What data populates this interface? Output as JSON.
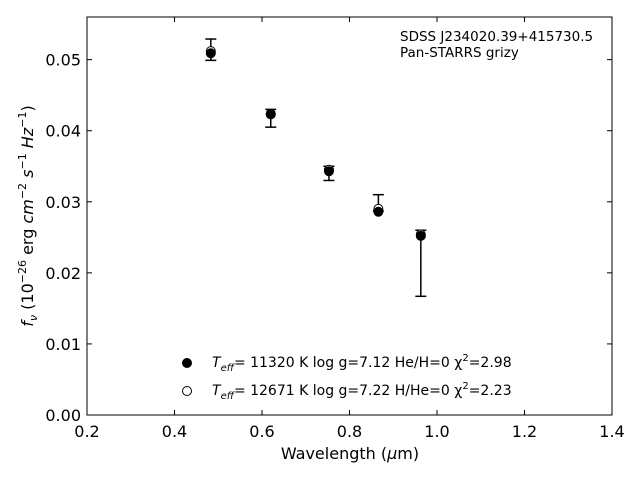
{
  "chart_data": {
    "type": "scatter",
    "title": "",
    "xlabel": "Wavelength (μm)",
    "ylabel": "f_ν (10^-26 erg cm^-2 s^-1 Hz^-1)",
    "xlim": [
      0.2,
      1.4
    ],
    "ylim": [
      0.0,
      0.056
    ],
    "x_ticks": [
      0.2,
      0.4,
      0.6,
      0.8,
      1.0,
      1.2,
      1.4
    ],
    "x_tick_labels": [
      "0.2",
      "0.4",
      "0.6",
      "0.8",
      "1.0",
      "1.2",
      "1.4"
    ],
    "y_ticks": [
      0.0,
      0.01,
      0.02,
      0.03,
      0.04,
      0.05
    ],
    "y_tick_labels": [
      "0.00",
      "0.01",
      "0.02",
      "0.03",
      "0.04",
      "0.05"
    ],
    "grid": false,
    "annotation": {
      "line1": "SDSS J234020.39+415730.5",
      "line2": "Pan-STARRS grizy"
    },
    "observed": {
      "x": [
        0.483,
        0.62,
        0.753,
        0.866,
        0.963
      ],
      "y_upper": [
        0.0529,
        0.043,
        0.035,
        0.031,
        0.026
      ],
      "y_lower": [
        0.0499,
        0.0405,
        0.033,
        0.0287,
        0.0167
      ]
    },
    "series": [
      {
        "marker": "filled-circle",
        "color": "#000000",
        "label_parts": {
          "pre": "T",
          "sub": "eff",
          "post": "= 11320 K  log g=7.12  He/H=0  χ",
          "sup": "2",
          "end": "=2.98"
        },
        "x": [
          0.483,
          0.62,
          0.753,
          0.866,
          0.963
        ],
        "y": [
          0.0509,
          0.0423,
          0.0343,
          0.0286,
          0.0252
        ]
      },
      {
        "marker": "open-circle",
        "color": "#000000",
        "label_parts": {
          "pre": "T",
          "sub": "eff",
          "post": "= 12671 K  log g=7.22  H/He=0  χ",
          "sup": "2",
          "end": "=2.23"
        },
        "x": [
          0.483,
          0.62,
          0.753,
          0.866,
          0.963
        ],
        "y": [
          0.0512,
          0.0424,
          0.0345,
          0.029,
          0.0254
        ]
      }
    ],
    "legend_position": "lower-left"
  }
}
